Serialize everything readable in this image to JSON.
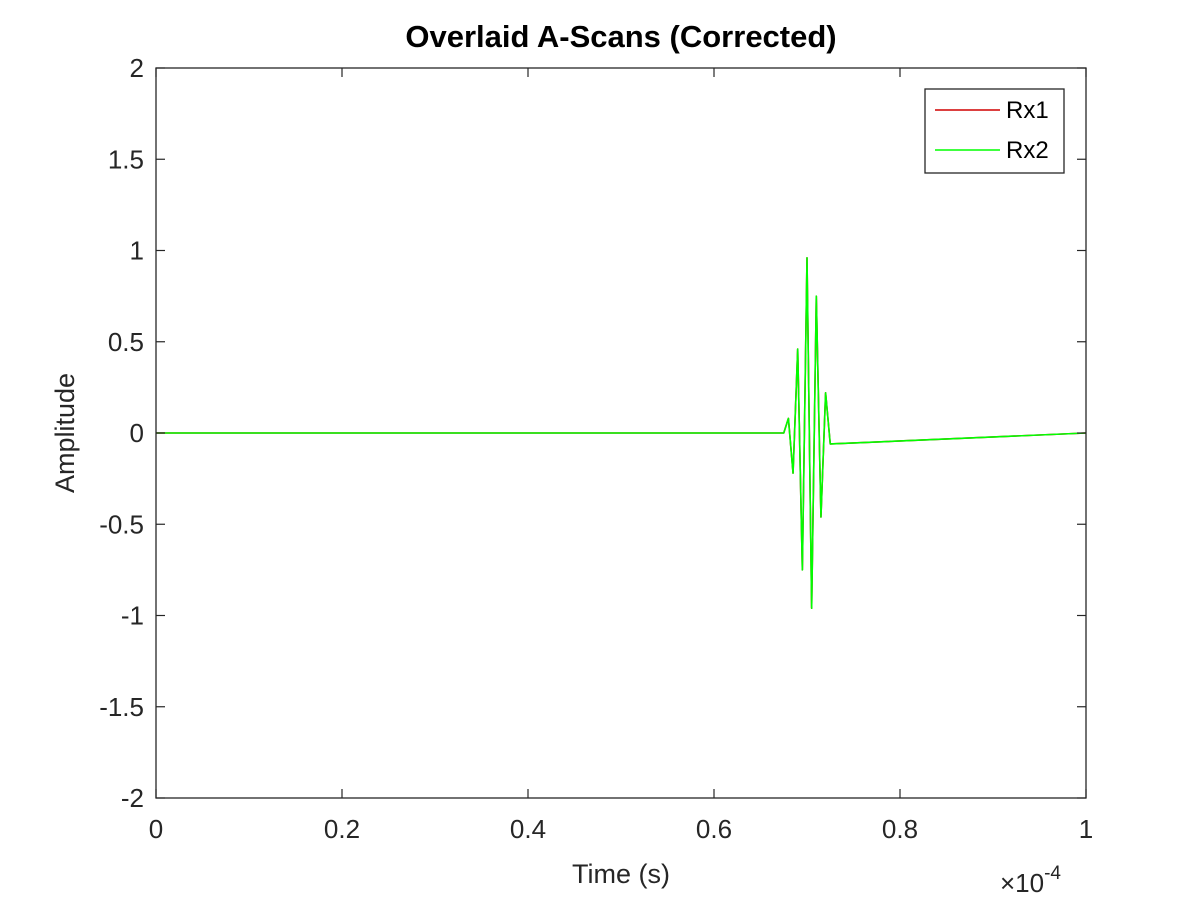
{
  "chart_data": {
    "type": "line",
    "title": "Overlaid A-Scans (Corrected)",
    "xlabel": "Time (s)",
    "ylabel": "Amplitude",
    "xlim": [
      0,
      1
    ],
    "ylim": [
      -2,
      2
    ],
    "x_exponent_label": "×10",
    "x_exponent_value": "-4",
    "xticks": [
      0,
      0.2,
      0.4,
      0.6,
      0.8,
      1
    ],
    "xtick_labels": [
      "0",
      "0.2",
      "0.4",
      "0.6",
      "0.8",
      "1"
    ],
    "yticks": [
      2,
      1.5,
      1,
      0.5,
      0,
      -0.5,
      -1,
      -1.5,
      -2
    ],
    "ytick_labels": [
      "2",
      "1.5",
      "1",
      "0.5",
      "0",
      "-0.5",
      "-1",
      "-1.5",
      "-2"
    ],
    "grid": false,
    "legend_position": "top-right",
    "series": [
      {
        "name": "Rx1",
        "color": "#d00000",
        "x": [
          0,
          0.675,
          0.68,
          0.685,
          0.69,
          0.695,
          0.7,
          0.705,
          0.71,
          0.715,
          0.72,
          0.725,
          1
        ],
        "y": [
          0,
          0,
          0.08,
          -0.22,
          0.46,
          -0.75,
          0.96,
          -0.96,
          0.75,
          -0.46,
          0.22,
          -0.06,
          0
        ]
      },
      {
        "name": "Rx2",
        "color": "#00ff00",
        "x": [
          0,
          0.675,
          0.68,
          0.685,
          0.69,
          0.695,
          0.7,
          0.705,
          0.71,
          0.715,
          0.72,
          0.725,
          1
        ],
        "y": [
          0,
          0,
          0.08,
          -0.22,
          0.46,
          -0.75,
          0.96,
          -0.96,
          0.75,
          -0.46,
          0.22,
          -0.06,
          0
        ]
      }
    ]
  }
}
